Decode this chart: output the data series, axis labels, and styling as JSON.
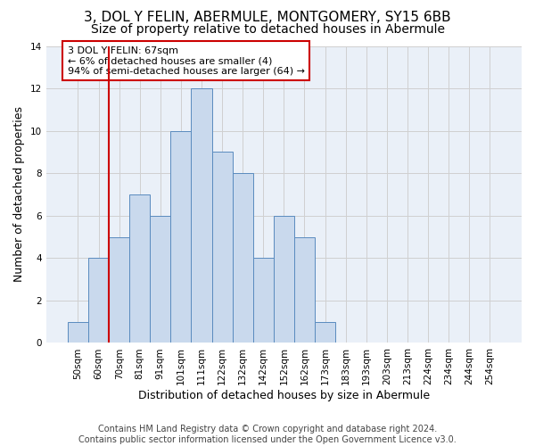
{
  "title": "3, DOL Y FELIN, ABERMULE, MONTGOMERY, SY15 6BB",
  "subtitle": "Size of property relative to detached houses in Abermule",
  "xlabel": "Distribution of detached houses by size in Abermule",
  "ylabel": "Number of detached properties",
  "bar_labels": [
    "50sqm",
    "60sqm",
    "70sqm",
    "81sqm",
    "91sqm",
    "101sqm",
    "111sqm",
    "122sqm",
    "132sqm",
    "142sqm",
    "152sqm",
    "162sqm",
    "173sqm",
    "183sqm",
    "193sqm",
    "203sqm",
    "213sqm",
    "224sqm",
    "234sqm",
    "244sqm",
    "254sqm"
  ],
  "bar_values": [
    1,
    4,
    5,
    7,
    6,
    10,
    12,
    9,
    8,
    4,
    6,
    5,
    1,
    0,
    0,
    0,
    0,
    0,
    0,
    0,
    0
  ],
  "bar_color": "#c9d9ed",
  "bar_edgecolor": "#5a8bbf",
  "vline_color": "#cc0000",
  "vline_x_index": 1.5,
  "annotation_text": "3 DOL Y FELIN: 67sqm\n← 6% of detached houses are smaller (4)\n94% of semi-detached houses are larger (64) →",
  "annotation_box_color": "#ffffff",
  "annotation_box_edgecolor": "#cc0000",
  "ylim": [
    0,
    14
  ],
  "yticks": [
    0,
    2,
    4,
    6,
    8,
    10,
    12,
    14
  ],
  "grid_color": "#d0d0d0",
  "bg_color": "#eaf0f8",
  "footer": "Contains HM Land Registry data © Crown copyright and database right 2024.\nContains public sector information licensed under the Open Government Licence v3.0.",
  "title_fontsize": 11,
  "subtitle_fontsize": 10,
  "axis_label_fontsize": 9,
  "tick_fontsize": 7.5,
  "annotation_fontsize": 8,
  "footer_fontsize": 7
}
